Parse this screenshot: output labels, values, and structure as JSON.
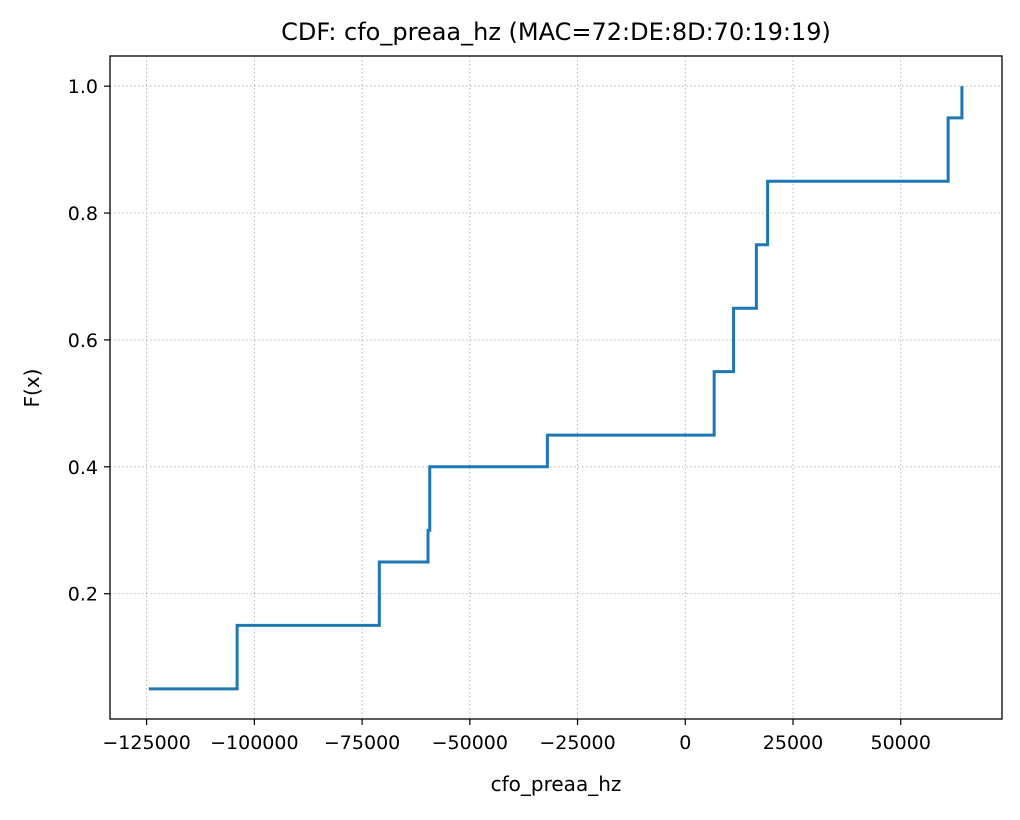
{
  "chart_data": {
    "type": "line",
    "drawstyle": "steps-post",
    "title": "CDF: cfo_preaa_hz (MAC=72:DE:8D:70:19:19)",
    "xlabel": "cfo_preaa_hz",
    "ylabel": "F(x)",
    "xlim": [
      -133500,
      73500
    ],
    "ylim": [
      0.0025,
      1.0475
    ],
    "x_ticks": [
      -125000,
      -100000,
      -75000,
      -50000,
      -25000,
      0,
      25000,
      50000
    ],
    "x_tick_labels": [
      "−125000",
      "−100000",
      "−75000",
      "−50000",
      "−25000",
      "0",
      "25000",
      "50000"
    ],
    "y_ticks": [
      0.2,
      0.4,
      0.6,
      0.8,
      1.0
    ],
    "y_tick_labels": [
      "0.2",
      "0.4",
      "0.6",
      "0.8",
      "1.0"
    ],
    "grid": true,
    "series": [
      {
        "color": "#1f77b4",
        "x": [
          -124500,
          -104000,
          -71000,
          -59700,
          -59300,
          -32000,
          6700,
          11200,
          16500,
          19100,
          61000,
          64200
        ],
        "y": [
          0.05,
          0.15,
          0.25,
          0.3,
          0.4,
          0.45,
          0.55,
          0.65,
          0.75,
          0.85,
          0.95,
          1.0
        ]
      }
    ]
  }
}
